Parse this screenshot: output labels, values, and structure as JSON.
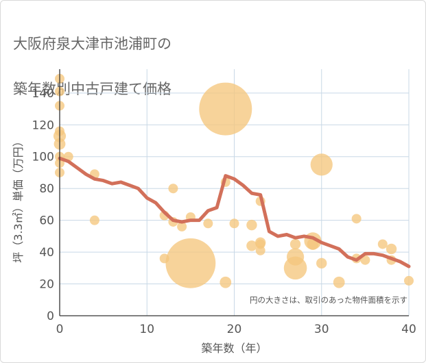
{
  "title_lines": [
    "大阪府泉大津市池浦町の",
    "築年数別中古戸建て価格"
  ],
  "chart_data": {
    "type": "scatter",
    "title": "大阪府泉大津市池浦町の築年数別中古戸建て価格",
    "xlabel": "築年数（年）",
    "ylabel": "坪（3.3㎡）単価（万円）",
    "xlim": [
      0,
      40
    ],
    "ylim": [
      0,
      155
    ],
    "x_ticks": [
      0,
      10,
      20,
      30,
      40
    ],
    "y_ticks": [
      0,
      20,
      40,
      60,
      80,
      100,
      120,
      140
    ],
    "note": "円の大きさは、取引のあった物件面積を示す",
    "grid": true,
    "colors": {
      "bubble": "#f5c77e",
      "line": "#d2705a",
      "grid": "#c8d8e6"
    },
    "bubbles": [
      {
        "x": 0,
        "y": 149,
        "size": 1
      },
      {
        "x": 0,
        "y": 141,
        "size": 1
      },
      {
        "x": 0,
        "y": 132,
        "size": 1
      },
      {
        "x": 0,
        "y": 116,
        "size": 1
      },
      {
        "x": 0,
        "y": 113,
        "size": 1.3
      },
      {
        "x": 0,
        "y": 108,
        "size": 1.2
      },
      {
        "x": 0,
        "y": 100,
        "size": 1
      },
      {
        "x": 0,
        "y": 96,
        "size": 1
      },
      {
        "x": 0,
        "y": 90,
        "size": 1
      },
      {
        "x": 1,
        "y": 100,
        "size": 1
      },
      {
        "x": 4,
        "y": 89,
        "size": 1
      },
      {
        "x": 4,
        "y": 60,
        "size": 1
      },
      {
        "x": 12,
        "y": 63,
        "size": 1
      },
      {
        "x": 12,
        "y": 36,
        "size": 1
      },
      {
        "x": 13,
        "y": 80,
        "size": 1
      },
      {
        "x": 13,
        "y": 59,
        "size": 1
      },
      {
        "x": 14,
        "y": 56,
        "size": 1
      },
      {
        "x": 15,
        "y": 62,
        "size": 1
      },
      {
        "x": 15,
        "y": 33,
        "size": 5.2
      },
      {
        "x": 17,
        "y": 58,
        "size": 1
      },
      {
        "x": 19,
        "y": 130,
        "size": 5.5
      },
      {
        "x": 19,
        "y": 84,
        "size": 1
      },
      {
        "x": 19,
        "y": 21,
        "size": 1.2
      },
      {
        "x": 20,
        "y": 58,
        "size": 1
      },
      {
        "x": 22,
        "y": 57,
        "size": 1.1
      },
      {
        "x": 22,
        "y": 44,
        "size": 1.1
      },
      {
        "x": 23,
        "y": 72,
        "size": 1
      },
      {
        "x": 23,
        "y": 46,
        "size": 1.1
      },
      {
        "x": 23,
        "y": 45,
        "size": 1
      },
      {
        "x": 23,
        "y": 41,
        "size": 1
      },
      {
        "x": 27,
        "y": 45,
        "size": 1.1
      },
      {
        "x": 27,
        "y": 37,
        "size": 1.8
      },
      {
        "x": 27,
        "y": 30,
        "size": 2.4
      },
      {
        "x": 29,
        "y": 47,
        "size": 1.8
      },
      {
        "x": 29,
        "y": 45,
        "size": 1.2
      },
      {
        "x": 30,
        "y": 95,
        "size": 2.3
      },
      {
        "x": 30,
        "y": 33,
        "size": 1.1
      },
      {
        "x": 32,
        "y": 21,
        "size": 1.2
      },
      {
        "x": 34,
        "y": 61,
        "size": 1
      },
      {
        "x": 34,
        "y": 36,
        "size": 1
      },
      {
        "x": 35,
        "y": 35,
        "size": 1
      },
      {
        "x": 37,
        "y": 45,
        "size": 1
      },
      {
        "x": 38,
        "y": 42,
        "size": 1.1
      },
      {
        "x": 38,
        "y": 35,
        "size": 1
      },
      {
        "x": 40,
        "y": 22,
        "size": 1
      }
    ],
    "trend_line": {
      "x": [
        0,
        1,
        2,
        3,
        4,
        5,
        6,
        7,
        8,
        9,
        10,
        11,
        12,
        13,
        14,
        15,
        16,
        17,
        18,
        19,
        20,
        21,
        22,
        23,
        24,
        25,
        26,
        27,
        28,
        29,
        30,
        31,
        32,
        33,
        34,
        35,
        36,
        37,
        38,
        39,
        40
      ],
      "y": [
        99,
        97,
        93,
        89,
        86,
        85,
        83,
        84,
        82,
        80,
        74,
        71,
        65,
        60,
        59,
        60,
        60,
        66,
        68,
        88,
        86,
        82,
        77,
        76,
        53,
        50,
        51,
        49,
        50,
        49,
        46,
        44,
        42,
        37,
        35,
        39,
        39,
        38,
        36,
        34,
        31
      ]
    }
  }
}
